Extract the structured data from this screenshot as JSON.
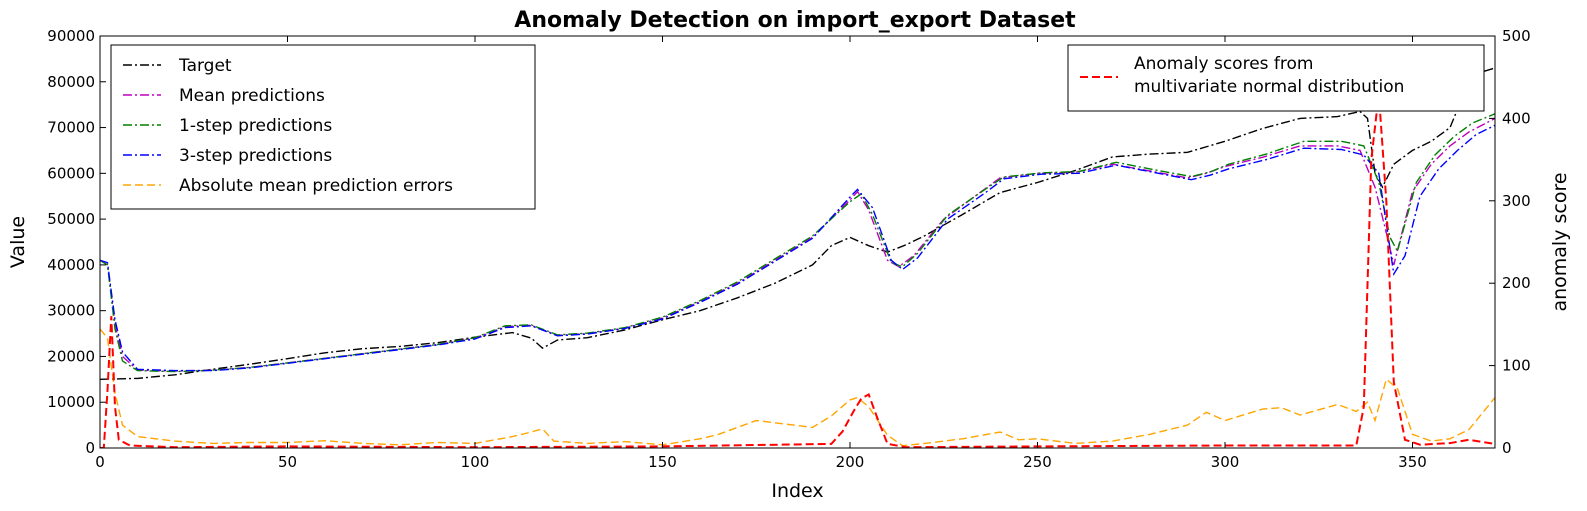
{
  "chart_data": {
    "type": "line",
    "title": "Anomaly Detection on import_export Dataset",
    "xlabel": "Index",
    "ylabel": "Value",
    "ylabel_right": "anomaly score",
    "xlim": [
      0,
      372
    ],
    "ylim": [
      0,
      90000
    ],
    "ylim_right": [
      0,
      500
    ],
    "xticks": [
      0,
      50,
      100,
      150,
      200,
      250,
      300,
      350
    ],
    "yticks": [
      0,
      10000,
      20000,
      30000,
      40000,
      50000,
      60000,
      70000,
      80000,
      90000
    ],
    "yticks_right": [
      0,
      100,
      200,
      300,
      400,
      500
    ],
    "grid": false,
    "legend_left_position": "upper-left",
    "legend_right_position": "upper-right",
    "series": [
      {
        "name": "Target",
        "axis": "left",
        "color": "#000000",
        "style": "dashdot",
        "points": [
          [
            0,
            15000
          ],
          [
            10,
            15200
          ],
          [
            20,
            16000
          ],
          [
            30,
            17200
          ],
          [
            40,
            18300
          ],
          [
            50,
            19500
          ],
          [
            60,
            20800
          ],
          [
            70,
            21700
          ],
          [
            80,
            22200
          ],
          [
            90,
            23000
          ],
          [
            100,
            24200
          ],
          [
            110,
            25200
          ],
          [
            115,
            24000
          ],
          [
            118,
            21800
          ],
          [
            122,
            23600
          ],
          [
            130,
            24100
          ],
          [
            140,
            25800
          ],
          [
            150,
            28000
          ],
          [
            160,
            30000
          ],
          [
            170,
            32800
          ],
          [
            180,
            36000
          ],
          [
            190,
            40000
          ],
          [
            195,
            44200
          ],
          [
            200,
            46000
          ],
          [
            205,
            44200
          ],
          [
            210,
            42800
          ],
          [
            215,
            44400
          ],
          [
            220,
            46400
          ],
          [
            230,
            51000
          ],
          [
            235,
            53400
          ],
          [
            240,
            55800
          ],
          [
            250,
            58000
          ],
          [
            260,
            60600
          ],
          [
            270,
            63600
          ],
          [
            280,
            64200
          ],
          [
            290,
            64600
          ],
          [
            300,
            67000
          ],
          [
            310,
            69800
          ],
          [
            320,
            72000
          ],
          [
            330,
            72400
          ],
          [
            336,
            73500
          ],
          [
            338,
            72000
          ],
          [
            340,
            60000
          ],
          [
            342,
            57000
          ],
          [
            345,
            62000
          ],
          [
            350,
            65000
          ],
          [
            355,
            67000
          ],
          [
            360,
            70000
          ],
          [
            365,
            80000
          ],
          [
            368,
            82000
          ],
          [
            372,
            83000
          ]
        ]
      },
      {
        "name": "Mean predictions",
        "axis": "left",
        "color": "#bf00bf",
        "style": "dashdot",
        "points": [
          [
            0,
            41000
          ],
          [
            2,
            40000
          ],
          [
            4,
            27000
          ],
          [
            6,
            20000
          ],
          [
            10,
            17000
          ],
          [
            20,
            16800
          ],
          [
            30,
            17000
          ],
          [
            40,
            17600
          ],
          [
            50,
            18600
          ],
          [
            60,
            19600
          ],
          [
            70,
            20600
          ],
          [
            80,
            21600
          ],
          [
            90,
            22600
          ],
          [
            100,
            24000
          ],
          [
            108,
            26500
          ],
          [
            115,
            26800
          ],
          [
            122,
            24600
          ],
          [
            130,
            25000
          ],
          [
            140,
            26200
          ],
          [
            150,
            28400
          ],
          [
            160,
            32000
          ],
          [
            170,
            36000
          ],
          [
            180,
            41000
          ],
          [
            190,
            46000
          ],
          [
            200,
            54200
          ],
          [
            202,
            56000
          ],
          [
            205,
            52000
          ],
          [
            210,
            41000
          ],
          [
            213,
            39600
          ],
          [
            217,
            42000
          ],
          [
            225,
            50000
          ],
          [
            235,
            56000
          ],
          [
            240,
            59000
          ],
          [
            250,
            60000
          ],
          [
            260,
            60200
          ],
          [
            270,
            62000
          ],
          [
            280,
            60500
          ],
          [
            290,
            59000
          ],
          [
            295,
            60000
          ],
          [
            300,
            61500
          ],
          [
            310,
            63500
          ],
          [
            320,
            66000
          ],
          [
            330,
            66000
          ],
          [
            336,
            65000
          ],
          [
            340,
            57000
          ],
          [
            343,
            47000
          ],
          [
            345,
            40000
          ],
          [
            350,
            56000
          ],
          [
            355,
            62000
          ],
          [
            360,
            66000
          ],
          [
            365,
            69000
          ],
          [
            372,
            72000
          ]
        ]
      },
      {
        "name": "1-step predictions",
        "axis": "left",
        "color": "#008000",
        "style": "dashdot",
        "points": [
          [
            0,
            41000
          ],
          [
            2,
            40000
          ],
          [
            4,
            26000
          ],
          [
            6,
            19000
          ],
          [
            10,
            16900
          ],
          [
            20,
            16700
          ],
          [
            30,
            17000
          ],
          [
            40,
            17600
          ],
          [
            50,
            18600
          ],
          [
            60,
            19600
          ],
          [
            70,
            20600
          ],
          [
            80,
            21600
          ],
          [
            90,
            22600
          ],
          [
            100,
            24100
          ],
          [
            108,
            26700
          ],
          [
            115,
            26900
          ],
          [
            122,
            24700
          ],
          [
            130,
            25100
          ],
          [
            140,
            26300
          ],
          [
            150,
            28600
          ],
          [
            160,
            32200
          ],
          [
            170,
            36300
          ],
          [
            180,
            41300
          ],
          [
            190,
            46300
          ],
          [
            200,
            53800
          ],
          [
            203,
            55500
          ],
          [
            206,
            51000
          ],
          [
            211,
            40500
          ],
          [
            214,
            39600
          ],
          [
            218,
            42500
          ],
          [
            226,
            50800
          ],
          [
            236,
            56500
          ],
          [
            241,
            59200
          ],
          [
            251,
            60100
          ],
          [
            261,
            60400
          ],
          [
            271,
            62400
          ],
          [
            281,
            60800
          ],
          [
            291,
            59300
          ],
          [
            296,
            60300
          ],
          [
            301,
            62000
          ],
          [
            311,
            64200
          ],
          [
            321,
            67000
          ],
          [
            331,
            67000
          ],
          [
            337,
            66000
          ],
          [
            341,
            58000
          ],
          [
            344,
            46000
          ],
          [
            346,
            43000
          ],
          [
            351,
            58000
          ],
          [
            356,
            64000
          ],
          [
            361,
            68000
          ],
          [
            366,
            71000
          ],
          [
            372,
            73000
          ]
        ]
      },
      {
        "name": "3-step predictions",
        "axis": "left",
        "color": "#0000ff",
        "style": "dashdot",
        "points": [
          [
            0,
            41000
          ],
          [
            2,
            40500
          ],
          [
            4,
            28000
          ],
          [
            6,
            21000
          ],
          [
            10,
            17200
          ],
          [
            20,
            16900
          ],
          [
            30,
            16900
          ],
          [
            40,
            17500
          ],
          [
            50,
            18500
          ],
          [
            60,
            19500
          ],
          [
            70,
            20500
          ],
          [
            80,
            21500
          ],
          [
            90,
            22500
          ],
          [
            100,
            23800
          ],
          [
            108,
            26300
          ],
          [
            115,
            26700
          ],
          [
            122,
            24500
          ],
          [
            130,
            24900
          ],
          [
            140,
            26100
          ],
          [
            150,
            28200
          ],
          [
            160,
            31800
          ],
          [
            170,
            35800
          ],
          [
            180,
            40800
          ],
          [
            190,
            45800
          ],
          [
            200,
            54800
          ],
          [
            202,
            56500
          ],
          [
            206,
            52500
          ],
          [
            211,
            41000
          ],
          [
            214,
            39000
          ],
          [
            218,
            41500
          ],
          [
            226,
            50000
          ],
          [
            236,
            55700
          ],
          [
            241,
            58800
          ],
          [
            251,
            59800
          ],
          [
            261,
            60000
          ],
          [
            271,
            61800
          ],
          [
            281,
            60200
          ],
          [
            291,
            58600
          ],
          [
            296,
            59600
          ],
          [
            301,
            61000
          ],
          [
            311,
            63000
          ],
          [
            321,
            65500
          ],
          [
            331,
            65200
          ],
          [
            337,
            64000
          ],
          [
            341,
            60000
          ],
          [
            345,
            38000
          ],
          [
            348,
            42000
          ],
          [
            352,
            55000
          ],
          [
            357,
            61000
          ],
          [
            362,
            65000
          ],
          [
            367,
            68500
          ],
          [
            372,
            70500
          ]
        ]
      },
      {
        "name": "Absolute mean prediction errors",
        "axis": "left",
        "color": "#ffa500",
        "style": "dashed",
        "points": [
          [
            0,
            26000
          ],
          [
            2,
            24000
          ],
          [
            4,
            12000
          ],
          [
            6,
            5000
          ],
          [
            10,
            2500
          ],
          [
            20,
            1500
          ],
          [
            30,
            1000
          ],
          [
            40,
            1200
          ],
          [
            50,
            1200
          ],
          [
            60,
            1600
          ],
          [
            70,
            1000
          ],
          [
            80,
            700
          ],
          [
            90,
            1200
          ],
          [
            100,
            1000
          ],
          [
            110,
            2500
          ],
          [
            115,
            3500
          ],
          [
            118,
            4200
          ],
          [
            121,
            1500
          ],
          [
            130,
            1000
          ],
          [
            140,
            1400
          ],
          [
            150,
            700
          ],
          [
            160,
            2000
          ],
          [
            165,
            3000
          ],
          [
            175,
            6000
          ],
          [
            180,
            5500
          ],
          [
            190,
            4500
          ],
          [
            195,
            7000
          ],
          [
            200,
            10500
          ],
          [
            202,
            11000
          ],
          [
            205,
            9000
          ],
          [
            210,
            2800
          ],
          [
            214,
            500
          ],
          [
            220,
            1000
          ],
          [
            230,
            2000
          ],
          [
            240,
            3500
          ],
          [
            245,
            1800
          ],
          [
            250,
            2000
          ],
          [
            260,
            1000
          ],
          [
            270,
            1500
          ],
          [
            280,
            3000
          ],
          [
            290,
            5000
          ],
          [
            295,
            7800
          ],
          [
            300,
            6000
          ],
          [
            310,
            8500
          ],
          [
            315,
            8800
          ],
          [
            320,
            7200
          ],
          [
            330,
            9500
          ],
          [
            335,
            8000
          ],
          [
            338,
            10000
          ],
          [
            340,
            6000
          ],
          [
            343,
            15000
          ],
          [
            346,
            13000
          ],
          [
            350,
            3000
          ],
          [
            355,
            1500
          ],
          [
            360,
            2000
          ],
          [
            365,
            4000
          ],
          [
            372,
            11000
          ]
        ]
      },
      {
        "name": "Anomaly scores from multivariate normal distribution",
        "axis": "right",
        "color": "#ff0000",
        "style": "dashed",
        "points": [
          [
            0,
            0
          ],
          [
            1,
            0
          ],
          [
            2,
            70
          ],
          [
            3,
            160
          ],
          [
            4,
            50
          ],
          [
            5,
            10
          ],
          [
            8,
            3
          ],
          [
            20,
            1
          ],
          [
            50,
            2
          ],
          [
            100,
            1
          ],
          [
            150,
            2
          ],
          [
            195,
            5
          ],
          [
            198,
            20
          ],
          [
            201,
            45
          ],
          [
            203,
            60
          ],
          [
            205,
            65
          ],
          [
            207,
            40
          ],
          [
            210,
            5
          ],
          [
            215,
            1
          ],
          [
            250,
            2
          ],
          [
            300,
            3
          ],
          [
            335,
            3
          ],
          [
            337,
            50
          ],
          [
            339,
            350
          ],
          [
            341,
            430
          ],
          [
            343,
            300
          ],
          [
            345,
            80
          ],
          [
            348,
            10
          ],
          [
            352,
            4
          ],
          [
            360,
            6
          ],
          [
            365,
            10
          ],
          [
            372,
            5
          ]
        ]
      }
    ]
  }
}
